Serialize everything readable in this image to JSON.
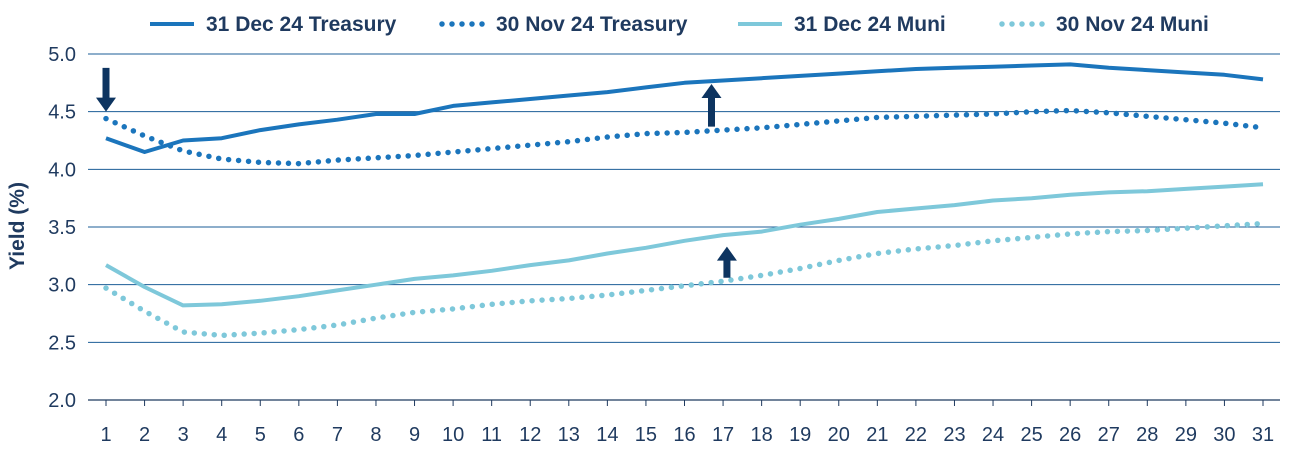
{
  "chart_data": {
    "type": "line",
    "xlabel": "",
    "ylabel": "Yield (%)",
    "ylim": [
      2.0,
      5.0
    ],
    "ytick_step": 0.5,
    "y_tick_labels": [
      "2.0",
      "2.5",
      "3.0",
      "3.5",
      "4.0",
      "4.5",
      "5.0"
    ],
    "x": [
      1,
      2,
      3,
      4,
      5,
      6,
      7,
      8,
      9,
      10,
      11,
      12,
      13,
      14,
      15,
      16,
      17,
      18,
      19,
      20,
      21,
      22,
      23,
      24,
      25,
      26,
      27,
      28,
      29,
      30,
      31
    ],
    "x_tick_labels": [
      "1",
      "2",
      "3",
      "4",
      "5",
      "6",
      "7",
      "8",
      "9",
      "10",
      "11",
      "12",
      "13",
      "14",
      "15",
      "16",
      "17",
      "18",
      "19",
      "20",
      "21",
      "22",
      "23",
      "24",
      "25",
      "26",
      "27",
      "28",
      "29",
      "30",
      "31"
    ],
    "grid": "horizontal",
    "legend_position": "top",
    "series": [
      {
        "name": "31 Dec 24 Treasury",
        "style": "solid",
        "color": "#1b75bc",
        "values": [
          4.27,
          4.15,
          4.25,
          4.27,
          4.34,
          4.39,
          4.43,
          4.48,
          4.48,
          4.55,
          4.58,
          4.61,
          4.64,
          4.67,
          4.71,
          4.75,
          4.77,
          4.79,
          4.81,
          4.83,
          4.85,
          4.87,
          4.88,
          4.89,
          4.9,
          4.91,
          4.88,
          4.86,
          4.84,
          4.82,
          4.78
        ]
      },
      {
        "name": "30 Nov 24 Treasury",
        "style": "dotted",
        "color": "#1b75bc",
        "values": [
          4.44,
          4.29,
          4.16,
          4.09,
          4.06,
          4.05,
          4.08,
          4.1,
          4.12,
          4.15,
          4.18,
          4.21,
          4.24,
          4.28,
          4.31,
          4.32,
          4.34,
          4.36,
          4.39,
          4.42,
          4.45,
          4.46,
          4.47,
          4.48,
          4.5,
          4.51,
          4.49,
          4.46,
          4.43,
          4.4,
          4.36
        ]
      },
      {
        "name": "31 Dec 24 Muni",
        "style": "solid",
        "color": "#7ec8da",
        "values": [
          3.17,
          2.98,
          2.82,
          2.83,
          2.86,
          2.9,
          2.95,
          3.0,
          3.05,
          3.08,
          3.12,
          3.17,
          3.21,
          3.27,
          3.32,
          3.38,
          3.43,
          3.46,
          3.52,
          3.57,
          3.63,
          3.66,
          3.69,
          3.73,
          3.75,
          3.78,
          3.8,
          3.81,
          3.83,
          3.85,
          3.87
        ]
      },
      {
        "name": "30 Nov 24 Muni",
        "style": "dotted",
        "color": "#7ec8da",
        "values": [
          2.97,
          2.77,
          2.59,
          2.56,
          2.58,
          2.61,
          2.65,
          2.71,
          2.76,
          2.79,
          2.83,
          2.86,
          2.88,
          2.91,
          2.95,
          2.99,
          3.03,
          3.08,
          3.14,
          3.21,
          3.27,
          3.31,
          3.34,
          3.38,
          3.41,
          3.44,
          3.46,
          3.47,
          3.49,
          3.51,
          3.53
        ]
      }
    ],
    "annotations": [
      {
        "kind": "arrow",
        "direction": "down",
        "x": 1,
        "y_tip": 4.5,
        "y_tail": 4.88,
        "color": "#0d3460"
      },
      {
        "kind": "arrow",
        "direction": "up",
        "x": 16.7,
        "y_tip": 4.74,
        "y_tail": 4.37,
        "color": "#0d3460"
      },
      {
        "kind": "arrow",
        "direction": "up",
        "x": 17.1,
        "y_tip": 3.33,
        "y_tail": 3.06,
        "color": "#0d3460"
      }
    ],
    "colors": {
      "text": "#1f3a5f",
      "grid": "#1b5e97",
      "axis": "#1f3a5f"
    }
  }
}
